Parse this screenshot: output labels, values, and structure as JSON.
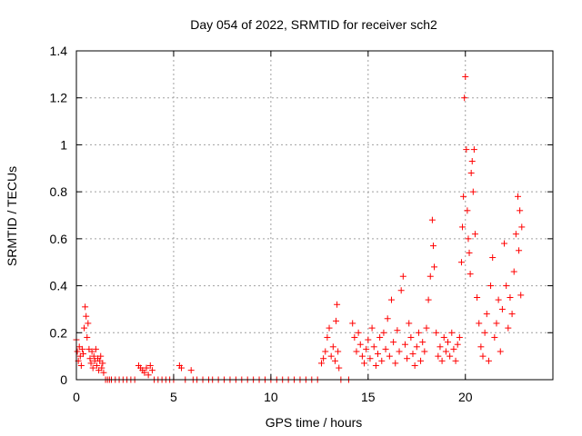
{
  "chart_data": {
    "type": "scatter",
    "title": "Day 054 of 2022, SRMTID for receiver sch2",
    "xlabel": "GPS time / hours",
    "ylabel": "SRMTID / TECUs",
    "xlim": [
      0,
      24.5
    ],
    "ylim": [
      0,
      1.4
    ],
    "xticks": [
      0,
      5,
      10,
      15,
      20
    ],
    "xtick_labels": [
      "0",
      "5",
      "10",
      "15",
      "20"
    ],
    "yticks": [
      0,
      0.2,
      0.4,
      0.6,
      0.8,
      1.0,
      1.2,
      1.4
    ],
    "ytick_labels": [
      "0",
      "0.2",
      "0.4",
      "0.6",
      "0.8",
      "1",
      "1.2",
      "1.4"
    ],
    "grid": true,
    "marker": "+",
    "color": "#ff0000",
    "series": [
      {
        "name": "SRMTID",
        "points": [
          [
            0.0,
            0.17
          ],
          [
            0.05,
            0.12
          ],
          [
            0.1,
            0.08
          ],
          [
            0.15,
            0.14
          ],
          [
            0.2,
            0.1
          ],
          [
            0.25,
            0.06
          ],
          [
            0.3,
            0.13
          ],
          [
            0.35,
            0.11
          ],
          [
            0.4,
            0.22
          ],
          [
            0.45,
            0.31
          ],
          [
            0.5,
            0.27
          ],
          [
            0.55,
            0.18
          ],
          [
            0.6,
            0.24
          ],
          [
            0.65,
            0.13
          ],
          [
            0.7,
            0.09
          ],
          [
            0.75,
            0.07
          ],
          [
            0.8,
            0.12
          ],
          [
            0.85,
            0.05
          ],
          [
            0.9,
            0.1
          ],
          [
            0.95,
            0.08
          ],
          [
            1.0,
            0.13
          ],
          [
            1.05,
            0.06
          ],
          [
            1.1,
            0.09
          ],
          [
            1.15,
            0.04
          ],
          [
            1.2,
            0.08
          ],
          [
            1.25,
            0.1
          ],
          [
            1.3,
            0.05
          ],
          [
            1.35,
            0.07
          ],
          [
            1.4,
            0.03
          ],
          [
            1.5,
            0.0
          ],
          [
            1.6,
            0.0
          ],
          [
            1.7,
            0.0
          ],
          [
            1.8,
            0.0
          ],
          [
            2.0,
            0.0
          ],
          [
            2.2,
            0.0
          ],
          [
            2.4,
            0.0
          ],
          [
            2.6,
            0.0
          ],
          [
            2.8,
            0.0
          ],
          [
            3.0,
            0.0
          ],
          [
            3.2,
            0.06
          ],
          [
            3.3,
            0.05
          ],
          [
            3.4,
            0.04
          ],
          [
            3.5,
            0.03
          ],
          [
            3.6,
            0.05
          ],
          [
            3.7,
            0.02
          ],
          [
            3.8,
            0.06
          ],
          [
            3.9,
            0.04
          ],
          [
            4.0,
            0.0
          ],
          [
            4.2,
            0.0
          ],
          [
            4.4,
            0.0
          ],
          [
            4.6,
            0.0
          ],
          [
            4.8,
            0.0
          ],
          [
            5.0,
            0.0
          ],
          [
            5.3,
            0.06
          ],
          [
            5.4,
            0.05
          ],
          [
            5.6,
            0.0
          ],
          [
            5.9,
            0.04
          ],
          [
            6.0,
            0.0
          ],
          [
            6.2,
            0.0
          ],
          [
            6.5,
            0.0
          ],
          [
            6.8,
            0.0
          ],
          [
            7.0,
            0.0
          ],
          [
            7.3,
            0.0
          ],
          [
            7.6,
            0.0
          ],
          [
            7.9,
            0.0
          ],
          [
            8.2,
            0.0
          ],
          [
            8.5,
            0.0
          ],
          [
            8.8,
            0.0
          ],
          [
            9.1,
            0.0
          ],
          [
            9.4,
            0.0
          ],
          [
            9.7,
            0.0
          ],
          [
            10.0,
            0.0
          ],
          [
            10.3,
            0.0
          ],
          [
            10.6,
            0.0
          ],
          [
            10.9,
            0.0
          ],
          [
            11.2,
            0.0
          ],
          [
            11.5,
            0.0
          ],
          [
            11.8,
            0.0
          ],
          [
            12.1,
            0.0
          ],
          [
            12.4,
            0.0
          ],
          [
            12.6,
            0.07
          ],
          [
            12.7,
            0.09
          ],
          [
            12.8,
            0.12
          ],
          [
            12.9,
            0.18
          ],
          [
            13.0,
            0.22
          ],
          [
            13.1,
            0.1
          ],
          [
            13.2,
            0.14
          ],
          [
            13.3,
            0.08
          ],
          [
            13.35,
            0.25
          ],
          [
            13.4,
            0.32
          ],
          [
            13.45,
            0.12
          ],
          [
            13.5,
            0.05
          ],
          [
            13.6,
            0.0
          ],
          [
            14.0,
            0.0
          ],
          [
            14.2,
            0.24
          ],
          [
            14.3,
            0.18
          ],
          [
            14.4,
            0.12
          ],
          [
            14.5,
            0.2
          ],
          [
            14.6,
            0.15
          ],
          [
            14.7,
            0.1
          ],
          [
            14.8,
            0.07
          ],
          [
            14.9,
            0.13
          ],
          [
            15.0,
            0.17
          ],
          [
            15.1,
            0.09
          ],
          [
            15.2,
            0.22
          ],
          [
            15.3,
            0.14
          ],
          [
            15.4,
            0.06
          ],
          [
            15.5,
            0.11
          ],
          [
            15.6,
            0.18
          ],
          [
            15.7,
            0.08
          ],
          [
            15.8,
            0.2
          ],
          [
            15.9,
            0.13
          ],
          [
            16.0,
            0.26
          ],
          [
            16.1,
            0.1
          ],
          [
            16.2,
            0.34
          ],
          [
            16.3,
            0.16
          ],
          [
            16.4,
            0.07
          ],
          [
            16.5,
            0.21
          ],
          [
            16.6,
            0.12
          ],
          [
            16.7,
            0.38
          ],
          [
            16.8,
            0.44
          ],
          [
            16.9,
            0.15
          ],
          [
            17.0,
            0.09
          ],
          [
            17.1,
            0.24
          ],
          [
            17.2,
            0.18
          ],
          [
            17.3,
            0.11
          ],
          [
            17.4,
            0.06
          ],
          [
            17.5,
            0.14
          ],
          [
            17.6,
            0.2
          ],
          [
            17.7,
            0.08
          ],
          [
            17.8,
            0.16
          ],
          [
            17.9,
            0.12
          ],
          [
            18.0,
            0.22
          ],
          [
            18.1,
            0.34
          ],
          [
            18.2,
            0.44
          ],
          [
            18.3,
            0.68
          ],
          [
            18.35,
            0.57
          ],
          [
            18.4,
            0.48
          ],
          [
            18.5,
            0.2
          ],
          [
            18.6,
            0.1
          ],
          [
            18.7,
            0.14
          ],
          [
            18.8,
            0.08
          ],
          [
            18.9,
            0.18
          ],
          [
            19.0,
            0.12
          ],
          [
            19.1,
            0.16
          ],
          [
            19.2,
            0.1
          ],
          [
            19.3,
            0.2
          ],
          [
            19.4,
            0.13
          ],
          [
            19.5,
            0.08
          ],
          [
            19.6,
            0.15
          ],
          [
            19.7,
            0.18
          ],
          [
            19.8,
            0.5
          ],
          [
            19.85,
            0.65
          ],
          [
            19.9,
            0.78
          ],
          [
            19.95,
            1.2
          ],
          [
            20.0,
            1.29
          ],
          [
            20.05,
            0.98
          ],
          [
            20.1,
            0.72
          ],
          [
            20.15,
            0.6
          ],
          [
            20.2,
            0.54
          ],
          [
            20.25,
            0.45
          ],
          [
            20.3,
            0.88
          ],
          [
            20.35,
            0.93
          ],
          [
            20.4,
            0.8
          ],
          [
            20.45,
            0.98
          ],
          [
            20.5,
            0.62
          ],
          [
            20.6,
            0.35
          ],
          [
            20.7,
            0.24
          ],
          [
            20.8,
            0.14
          ],
          [
            20.9,
            0.1
          ],
          [
            21.0,
            0.2
          ],
          [
            21.1,
            0.28
          ],
          [
            21.2,
            0.08
          ],
          [
            21.3,
            0.4
          ],
          [
            21.4,
            0.52
          ],
          [
            21.5,
            0.18
          ],
          [
            21.6,
            0.24
          ],
          [
            21.7,
            0.34
          ],
          [
            21.8,
            0.12
          ],
          [
            21.9,
            0.3
          ],
          [
            22.0,
            0.58
          ],
          [
            22.1,
            0.4
          ],
          [
            22.2,
            0.22
          ],
          [
            22.3,
            0.35
          ],
          [
            22.4,
            0.28
          ],
          [
            22.5,
            0.46
          ],
          [
            22.6,
            0.62
          ],
          [
            22.7,
            0.78
          ],
          [
            22.75,
            0.55
          ],
          [
            22.8,
            0.72
          ],
          [
            22.85,
            0.36
          ],
          [
            22.9,
            0.65
          ]
        ]
      }
    ]
  }
}
